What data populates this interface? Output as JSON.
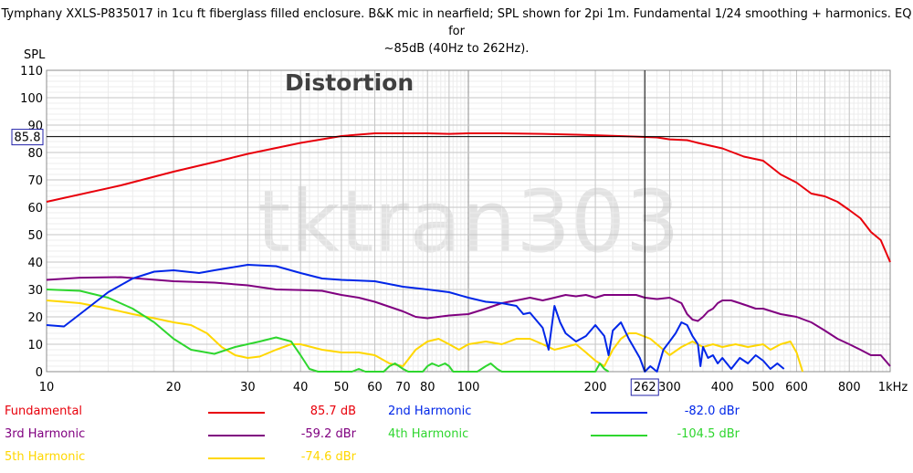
{
  "title_line1": "Tymphany XXLS-P835017 in 1cu ft fiberglass filled enclosure. B&K mic in nearfield; SPL shown for 2pi 1m. Fundamental 1/24 smoothing + harmonics. EQ for",
  "title_line2": "~85dB (40Hz to 262Hz).",
  "panel_label": "Distortion",
  "watermark": "tktran303",
  "chart_data": {
    "type": "line",
    "ylabel": "SPL",
    "xscale": "log",
    "xlim": [
      10,
      1000
    ],
    "ylim": [
      0,
      110
    ],
    "yticks": [
      0,
      10,
      20,
      30,
      40,
      50,
      60,
      70,
      80,
      90,
      100,
      110
    ],
    "xticks": [
      {
        "v": 10,
        "label": "10"
      },
      {
        "v": 20,
        "label": "20"
      },
      {
        "v": 30,
        "label": "30"
      },
      {
        "v": 40,
        "label": "40"
      },
      {
        "v": 50,
        "label": "50"
      },
      {
        "v": 60,
        "label": "60"
      },
      {
        "v": 70,
        "label": "70"
      },
      {
        "v": 80,
        "label": "80"
      },
      {
        "v": 100,
        "label": "100"
      },
      {
        "v": 200,
        "label": "200"
      },
      {
        "v": 300,
        "label": "300"
      },
      {
        "v": 400,
        "label": "400"
      },
      {
        "v": 500,
        "label": "500"
      },
      {
        "v": 600,
        "label": "600"
      },
      {
        "v": 800,
        "label": "800"
      },
      {
        "v": 1000,
        "label": "1kHz"
      }
    ],
    "cursor_x": 262,
    "cursor_x_label": "262",
    "cursor_y": 85.8,
    "cursor_y_label": "85.8",
    "series": [
      {
        "name": "Fundamental",
        "value_label": "85.7 dB",
        "color": "#e8000b",
        "points": [
          [
            10,
            62
          ],
          [
            15,
            68
          ],
          [
            20,
            73
          ],
          [
            25,
            76.5
          ],
          [
            30,
            79.5
          ],
          [
            40,
            83.5
          ],
          [
            50,
            86
          ],
          [
            60,
            87
          ],
          [
            70,
            87
          ],
          [
            80,
            87
          ],
          [
            90,
            86.8
          ],
          [
            100,
            87
          ],
          [
            120,
            87
          ],
          [
            150,
            86.8
          ],
          [
            180,
            86.5
          ],
          [
            200,
            86.3
          ],
          [
            250,
            85.8
          ],
          [
            280,
            85.5
          ],
          [
            300,
            84.8
          ],
          [
            330,
            84.5
          ],
          [
            350,
            83.5
          ],
          [
            400,
            81.5
          ],
          [
            450,
            78.5
          ],
          [
            500,
            77
          ],
          [
            550,
            72
          ],
          [
            600,
            69
          ],
          [
            650,
            65
          ],
          [
            700,
            64
          ],
          [
            750,
            62
          ],
          [
            800,
            59
          ],
          [
            850,
            56
          ],
          [
            900,
            51
          ],
          [
            950,
            48
          ],
          [
            1000,
            40
          ]
        ]
      },
      {
        "name": "2nd Harmonic",
        "value_label": "-82.0 dBr",
        "color": "#0026e8",
        "points": [
          [
            10,
            17
          ],
          [
            11,
            16.5
          ],
          [
            12,
            21
          ],
          [
            14,
            29
          ],
          [
            16,
            34
          ],
          [
            18,
            36.5
          ],
          [
            20,
            37
          ],
          [
            23,
            36
          ],
          [
            25,
            37
          ],
          [
            30,
            39
          ],
          [
            35,
            38.5
          ],
          [
            40,
            36
          ],
          [
            45,
            34
          ],
          [
            50,
            33.5
          ],
          [
            60,
            33
          ],
          [
            70,
            31
          ],
          [
            80,
            30
          ],
          [
            90,
            29
          ],
          [
            100,
            27
          ],
          [
            110,
            25.5
          ],
          [
            120,
            25
          ],
          [
            130,
            24
          ],
          [
            135,
            21
          ],
          [
            140,
            21.5
          ],
          [
            150,
            16
          ],
          [
            155,
            8
          ],
          [
            160,
            24
          ],
          [
            165,
            18
          ],
          [
            170,
            14
          ],
          [
            180,
            11
          ],
          [
            190,
            13
          ],
          [
            200,
            17
          ],
          [
            210,
            13
          ],
          [
            215,
            6
          ],
          [
            220,
            15
          ],
          [
            230,
            18
          ],
          [
            240,
            12
          ],
          [
            255,
            5
          ],
          [
            262,
            0
          ],
          [
            270,
            2
          ],
          [
            280,
            0
          ],
          [
            290,
            8
          ],
          [
            300,
            11
          ],
          [
            310,
            14
          ],
          [
            320,
            18
          ],
          [
            330,
            17
          ],
          [
            340,
            13
          ],
          [
            350,
            10
          ],
          [
            355,
            2
          ],
          [
            360,
            9
          ],
          [
            370,
            5
          ],
          [
            380,
            6
          ],
          [
            390,
            3
          ],
          [
            400,
            5
          ],
          [
            420,
            1
          ],
          [
            440,
            5
          ],
          [
            460,
            3
          ],
          [
            480,
            6
          ],
          [
            500,
            4
          ],
          [
            520,
            1
          ],
          [
            540,
            3
          ],
          [
            560,
            1
          ]
        ]
      },
      {
        "name": "3rd Harmonic",
        "value_label": "-59.2 dBr",
        "color": "#800080",
        "points": [
          [
            10,
            33.5
          ],
          [
            12,
            34.3
          ],
          [
            15,
            34.5
          ],
          [
            20,
            33
          ],
          [
            25,
            32.5
          ],
          [
            30,
            31.5
          ],
          [
            35,
            30
          ],
          [
            40,
            29.8
          ],
          [
            45,
            29.5
          ],
          [
            50,
            28
          ],
          [
            55,
            27
          ],
          [
            60,
            25.5
          ],
          [
            70,
            22
          ],
          [
            75,
            20
          ],
          [
            80,
            19.5
          ],
          [
            90,
            20.5
          ],
          [
            100,
            21
          ],
          [
            110,
            23
          ],
          [
            120,
            25
          ],
          [
            130,
            26
          ],
          [
            140,
            27
          ],
          [
            150,
            26
          ],
          [
            160,
            27
          ],
          [
            170,
            28
          ],
          [
            180,
            27.5
          ],
          [
            190,
            28
          ],
          [
            200,
            27
          ],
          [
            210,
            28
          ],
          [
            220,
            28
          ],
          [
            230,
            28
          ],
          [
            240,
            28
          ],
          [
            250,
            28
          ],
          [
            262,
            27
          ],
          [
            280,
            26.5
          ],
          [
            300,
            27
          ],
          [
            310,
            26
          ],
          [
            320,
            25
          ],
          [
            330,
            21
          ],
          [
            340,
            19
          ],
          [
            350,
            18.5
          ],
          [
            360,
            20
          ],
          [
            370,
            22
          ],
          [
            380,
            23
          ],
          [
            390,
            25
          ],
          [
            400,
            26
          ],
          [
            420,
            26
          ],
          [
            440,
            25
          ],
          [
            460,
            24
          ],
          [
            480,
            23
          ],
          [
            500,
            23
          ],
          [
            550,
            21
          ],
          [
            600,
            20
          ],
          [
            650,
            18
          ],
          [
            700,
            15
          ],
          [
            750,
            12
          ],
          [
            800,
            10
          ],
          [
            850,
            8
          ],
          [
            900,
            6
          ],
          [
            950,
            6
          ],
          [
            1000,
            2
          ]
        ]
      },
      {
        "name": "4th Harmonic",
        "value_label": "-104.5 dBr",
        "color": "#2ed62e",
        "points": [
          [
            10,
            30
          ],
          [
            12,
            29.5
          ],
          [
            14,
            27
          ],
          [
            16,
            23
          ],
          [
            18,
            18
          ],
          [
            20,
            12
          ],
          [
            22,
            8
          ],
          [
            25,
            6.5
          ],
          [
            28,
            9
          ],
          [
            32,
            11
          ],
          [
            35,
            12.5
          ],
          [
            38,
            11
          ],
          [
            40,
            6
          ],
          [
            42,
            1
          ],
          [
            44,
            0
          ],
          [
            53,
            0
          ],
          [
            55,
            1
          ],
          [
            57,
            0
          ],
          [
            63,
            0
          ],
          [
            65,
            2
          ],
          [
            67,
            3
          ],
          [
            70,
            1
          ],
          [
            72,
            0
          ],
          [
            78,
            0
          ],
          [
            80,
            2
          ],
          [
            82,
            3
          ],
          [
            85,
            2
          ],
          [
            88,
            3
          ],
          [
            90,
            2
          ],
          [
            92,
            0
          ],
          [
            105,
            0
          ],
          [
            110,
            2
          ],
          [
            113,
            3
          ],
          [
            117,
            1
          ],
          [
            120,
            0
          ],
          [
            200,
            0
          ],
          [
            205,
            3
          ],
          [
            210,
            1
          ],
          [
            215,
            0
          ]
        ]
      },
      {
        "name": "5th Harmonic",
        "value_label": "-74.6 dBr",
        "color": "#ffd700",
        "points": [
          [
            10,
            26
          ],
          [
            12,
            25
          ],
          [
            14,
            23
          ],
          [
            16,
            21
          ],
          [
            18,
            19.5
          ],
          [
            20,
            18
          ],
          [
            22,
            17
          ],
          [
            24,
            14
          ],
          [
            26,
            9
          ],
          [
            28,
            6
          ],
          [
            30,
            5
          ],
          [
            32,
            5.5
          ],
          [
            35,
            8
          ],
          [
            38,
            10
          ],
          [
            40,
            10
          ],
          [
            45,
            8
          ],
          [
            50,
            7
          ],
          [
            55,
            7
          ],
          [
            60,
            6
          ],
          [
            65,
            3
          ],
          [
            70,
            2
          ],
          [
            75,
            8
          ],
          [
            80,
            11
          ],
          [
            85,
            12
          ],
          [
            90,
            10
          ],
          [
            95,
            8
          ],
          [
            100,
            10
          ],
          [
            110,
            11
          ],
          [
            120,
            10
          ],
          [
            130,
            12
          ],
          [
            140,
            12
          ],
          [
            150,
            10
          ],
          [
            160,
            8
          ],
          [
            170,
            9
          ],
          [
            180,
            10
          ],
          [
            190,
            7
          ],
          [
            200,
            4
          ],
          [
            210,
            2
          ],
          [
            220,
            8
          ],
          [
            230,
            12
          ],
          [
            240,
            14
          ],
          [
            250,
            14
          ],
          [
            270,
            12
          ],
          [
            290,
            8
          ],
          [
            300,
            6
          ],
          [
            320,
            9
          ],
          [
            340,
            11
          ],
          [
            360,
            9
          ],
          [
            380,
            10
          ],
          [
            400,
            9
          ],
          [
            430,
            10
          ],
          [
            460,
            9
          ],
          [
            500,
            10
          ],
          [
            520,
            8
          ],
          [
            550,
            10
          ],
          [
            580,
            11
          ],
          [
            600,
            7
          ],
          [
            620,
            0
          ]
        ]
      }
    ]
  }
}
